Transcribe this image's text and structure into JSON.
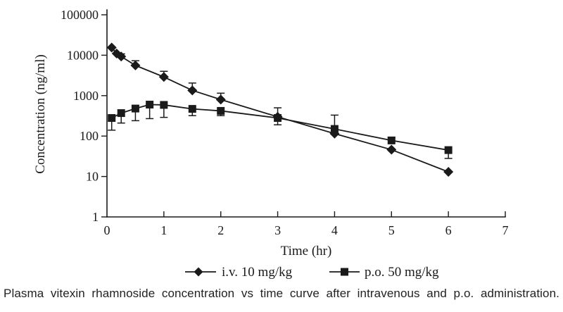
{
  "caption": "Plasma vitexin rhamnoside concentration vs time curve after intravenous and p.o. administration.",
  "colors": {
    "ink": "#1a1a1a",
    "background": "#ffffff"
  },
  "chart_data": {
    "type": "line",
    "title": "",
    "xlabel": "Time (hr)",
    "ylabel": "Concentration (ng/ml)",
    "x_scale": "linear",
    "y_scale": "log",
    "xlim": [
      0,
      7
    ],
    "ylim": [
      1,
      100000
    ],
    "xticks": [
      0,
      1,
      2,
      3,
      4,
      5,
      6,
      7
    ],
    "yticks": [
      1,
      10,
      100,
      1000,
      10000,
      100000
    ],
    "grid": false,
    "legend_position": "bottom",
    "series": [
      {
        "name": "i.v. 10 mg/kg",
        "marker": "diamond",
        "color": "#1a1a1a",
        "x": [
          0.083,
          0.17,
          0.25,
          0.5,
          1,
          1.5,
          2,
          3,
          4,
          5,
          6
        ],
        "y": [
          15500,
          11000,
          9300,
          5600,
          2900,
          1350,
          800,
          300,
          115,
          46,
          13
        ],
        "err_up": [
          0,
          0,
          1500,
          1700,
          1100,
          700,
          350,
          0,
          0,
          0,
          0
        ],
        "err_down": [
          0,
          0,
          0,
          0,
          0,
          0,
          0,
          0,
          0,
          0,
          0
        ]
      },
      {
        "name": "p.o. 50 mg/kg",
        "marker": "square",
        "color": "#1a1a1a",
        "x": [
          0.083,
          0.25,
          0.5,
          0.75,
          1,
          1.5,
          2,
          3,
          4,
          5,
          6
        ],
        "y": [
          280,
          370,
          480,
          600,
          590,
          470,
          420,
          280,
          150,
          78,
          45
        ],
        "err_up": [
          0,
          0,
          0,
          0,
          0,
          0,
          0,
          220,
          180,
          15,
          0
        ],
        "err_down": [
          140,
          160,
          240,
          330,
          300,
          150,
          100,
          90,
          0,
          0,
          17
        ]
      }
    ]
  }
}
